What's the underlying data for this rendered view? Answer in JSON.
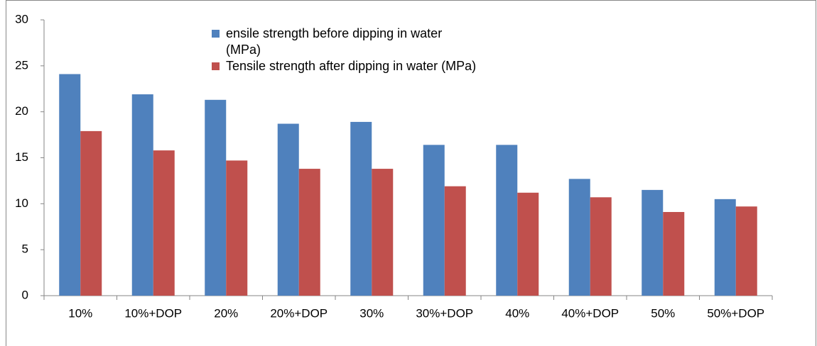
{
  "chart_data": {
    "type": "bar",
    "categories": [
      "10%",
      "10%+DOP",
      "20%",
      "20%+DOP",
      "30%",
      "30%+DOP",
      "40%",
      "40%+DOP",
      "50%",
      "50%+DOP"
    ],
    "series": [
      {
        "name": "ensile strength before dipping in water  (MPa)",
        "color": "#4f81bd",
        "values": [
          24.1,
          21.9,
          21.3,
          18.7,
          18.9,
          16.4,
          16.4,
          12.7,
          11.5,
          10.5
        ]
      },
      {
        "name": "Tensile strength after dipping in water  (MPa)",
        "color": "#c0504d",
        "values": [
          17.9,
          15.8,
          14.7,
          13.8,
          13.8,
          11.9,
          11.2,
          10.7,
          9.1,
          9.7
        ]
      }
    ],
    "ylim": [
      0,
      30
    ],
    "yticks": [
      0,
      5,
      10,
      15,
      20,
      25,
      30
    ],
    "grid": false,
    "legend": "top"
  }
}
